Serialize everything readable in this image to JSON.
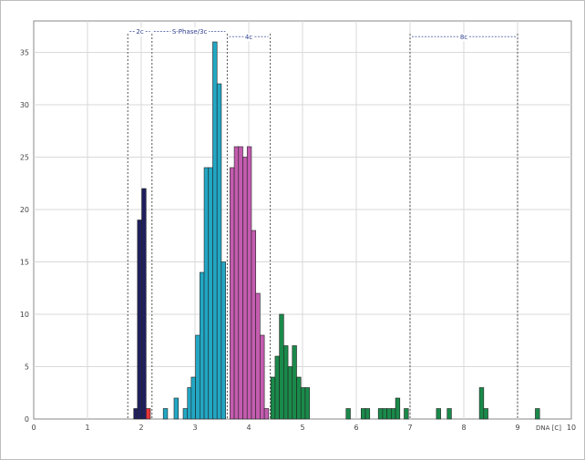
{
  "chart_data": {
    "type": "bar",
    "title": "",
    "xlabel": "DNA [C]",
    "ylabel": "",
    "xlim": [
      0,
      10
    ],
    "ylim": [
      0,
      38
    ],
    "xticks": [
      "0",
      "1",
      "2",
      "3",
      "4",
      "5",
      "6",
      "7",
      "8",
      "9",
      "10"
    ],
    "yticks": [
      "0",
      "5",
      "10",
      "15",
      "20",
      "25",
      "30",
      "35"
    ],
    "grid": true,
    "bin_width": 0.08,
    "colors": {
      "2c": "#1f1f5e",
      "2c-alt": "#e8343a",
      "S-Phase/3c": "#22a7c4",
      "4c": "#c45cb0",
      "tail": "#1a8a4a"
    },
    "bars": [
      {
        "x": 1.9,
        "value": 1,
        "group": "2c"
      },
      {
        "x": 1.97,
        "value": 19,
        "group": "2c"
      },
      {
        "x": 2.05,
        "value": 22,
        "group": "2c"
      },
      {
        "x": 2.13,
        "value": 1,
        "group": "2c-alt"
      },
      {
        "x": 2.45,
        "value": 1,
        "group": "S-Phase/3c"
      },
      {
        "x": 2.65,
        "value": 2,
        "group": "S-Phase/3c"
      },
      {
        "x": 2.82,
        "value": 1,
        "group": "S-Phase/3c"
      },
      {
        "x": 2.9,
        "value": 3,
        "group": "S-Phase/3c"
      },
      {
        "x": 2.97,
        "value": 4,
        "group": "S-Phase/3c"
      },
      {
        "x": 3.05,
        "value": 8,
        "group": "S-Phase/3c"
      },
      {
        "x": 3.13,
        "value": 14,
        "group": "S-Phase/3c"
      },
      {
        "x": 3.21,
        "value": 24,
        "group": "S-Phase/3c"
      },
      {
        "x": 3.29,
        "value": 24,
        "group": "S-Phase/3c"
      },
      {
        "x": 3.37,
        "value": 36,
        "group": "S-Phase/3c"
      },
      {
        "x": 3.45,
        "value": 32,
        "group": "S-Phase/3c"
      },
      {
        "x": 3.53,
        "value": 15,
        "group": "S-Phase/3c"
      },
      {
        "x": 3.69,
        "value": 24,
        "group": "4c"
      },
      {
        "x": 3.77,
        "value": 26,
        "group": "4c"
      },
      {
        "x": 3.85,
        "value": 26,
        "group": "4c"
      },
      {
        "x": 3.93,
        "value": 25,
        "group": "4c"
      },
      {
        "x": 4.01,
        "value": 26,
        "group": "4c"
      },
      {
        "x": 4.09,
        "value": 18,
        "group": "4c"
      },
      {
        "x": 4.17,
        "value": 12,
        "group": "4c"
      },
      {
        "x": 4.25,
        "value": 8,
        "group": "4c"
      },
      {
        "x": 4.33,
        "value": 1,
        "group": "4c"
      },
      {
        "x": 4.45,
        "value": 4,
        "group": "tail"
      },
      {
        "x": 4.53,
        "value": 6,
        "group": "tail"
      },
      {
        "x": 4.61,
        "value": 10,
        "group": "tail"
      },
      {
        "x": 4.69,
        "value": 7,
        "group": "tail"
      },
      {
        "x": 4.77,
        "value": 5,
        "group": "tail"
      },
      {
        "x": 4.85,
        "value": 7,
        "group": "tail"
      },
      {
        "x": 4.93,
        "value": 4,
        "group": "tail"
      },
      {
        "x": 5.01,
        "value": 3,
        "group": "tail"
      },
      {
        "x": 5.09,
        "value": 3,
        "group": "tail"
      },
      {
        "x": 5.85,
        "value": 1,
        "group": "tail"
      },
      {
        "x": 6.13,
        "value": 1,
        "group": "tail"
      },
      {
        "x": 6.21,
        "value": 1,
        "group": "tail"
      },
      {
        "x": 6.45,
        "value": 1,
        "group": "tail"
      },
      {
        "x": 6.53,
        "value": 1,
        "group": "tail"
      },
      {
        "x": 6.61,
        "value": 1,
        "group": "tail"
      },
      {
        "x": 6.69,
        "value": 1,
        "group": "tail"
      },
      {
        "x": 6.77,
        "value": 2,
        "group": "tail"
      },
      {
        "x": 6.93,
        "value": 1,
        "group": "tail"
      },
      {
        "x": 7.53,
        "value": 1,
        "group": "tail"
      },
      {
        "x": 7.73,
        "value": 1,
        "group": "tail"
      },
      {
        "x": 8.33,
        "value": 3,
        "group": "tail"
      },
      {
        "x": 8.41,
        "value": 1,
        "group": "tail"
      },
      {
        "x": 9.37,
        "value": 1,
        "group": "tail"
      }
    ],
    "regions": [
      {
        "label": "2c",
        "x_start": 1.75,
        "x_end": 2.2,
        "y": 37
      },
      {
        "label": "S-Phase/3c",
        "x_start": 2.2,
        "x_end": 3.6,
        "y": 37
      },
      {
        "label": "4c",
        "x_start": 3.6,
        "x_end": 4.4,
        "y": 36.5
      },
      {
        "label": "8c",
        "x_start": 7.0,
        "x_end": 9.0,
        "y": 36.5
      }
    ],
    "boundaries": [
      1.75,
      2.2,
      3.6,
      4.4,
      7.0,
      9.0
    ]
  }
}
